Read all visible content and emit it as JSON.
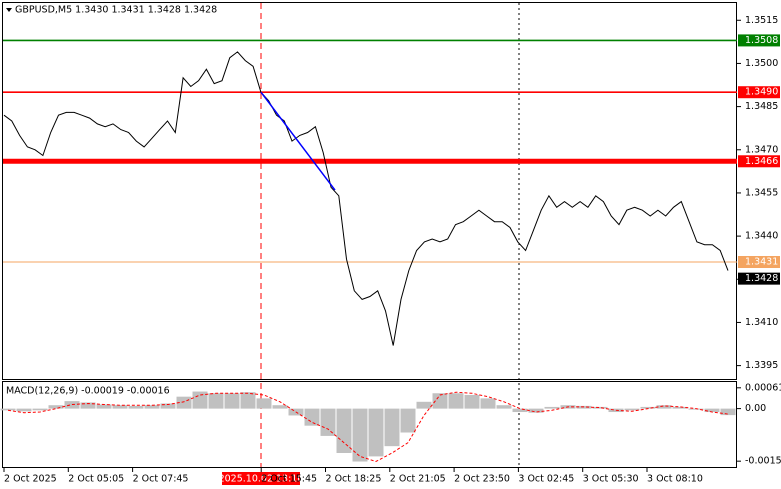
{
  "chart_data": [
    {
      "type": "line",
      "title": "GBPUSD,M5  1.3430 1.3431 1.3428 1.3428",
      "color": "#000000",
      "values": [
        1.3482,
        1.348,
        1.3475,
        1.3471,
        1.347,
        1.3468,
        1.3476,
        1.3482,
        1.3483,
        1.3483,
        1.3482,
        1.3481,
        1.3479,
        1.3478,
        1.3479,
        1.3477,
        1.3476,
        1.3473,
        1.3471,
        1.3474,
        1.3477,
        1.348,
        1.3476,
        1.3495,
        1.3492,
        1.3494,
        1.3498,
        1.3493,
        1.3494,
        1.3502,
        1.3504,
        1.3501,
        1.3499,
        1.349,
        1.3487,
        1.3482,
        1.348,
        1.3473,
        1.3475,
        1.3476,
        1.3478,
        1.3469,
        1.3457,
        1.3454,
        1.3432,
        1.3421,
        1.3418,
        1.3419,
        1.3421,
        1.3414,
        1.3402,
        1.3418,
        1.3428,
        1.3435,
        1.3438,
        1.3439,
        1.3438,
        1.3439,
        1.3444,
        1.3445,
        1.3447,
        1.3449,
        1.3447,
        1.3445,
        1.3445,
        1.3443,
        1.3438,
        1.3435,
        1.3442,
        1.3449,
        1.3454,
        1.345,
        1.3452,
        1.345,
        1.3452,
        1.345,
        1.3454,
        1.3452,
        1.3447,
        1.3444,
        1.3449,
        1.345,
        1.3449,
        1.3447,
        1.3449,
        1.3447,
        1.345,
        1.3452,
        1.3445,
        1.3438,
        1.3437,
        1.3437,
        1.3435,
        1.3428
      ],
      "ylim": [
        1.339,
        1.3521
      ],
      "yticks": [
        1.3515,
        {
          "value": 1.35,
          "label": "1.3500"
        },
        1.3485,
        {
          "value": 1.347,
          "label": "1.3470"
        },
        1.3455,
        {
          "value": 1.344,
          "label": "1.3440"
        },
        1.3425,
        {
          "value": 1.341,
          "label": "1.3410"
        },
        1.3395
      ],
      "levels": [
        {
          "value": 1.3508,
          "label": "1.3508",
          "color": "#008000"
        },
        {
          "value": 1.349,
          "label": "1.3490",
          "color": "#ff0000"
        },
        {
          "value": 1.3466,
          "label": "1.3466",
          "color": "#ff0000"
        },
        {
          "value": 1.3431,
          "label": "1.3431",
          "color": "#f4a460"
        }
      ],
      "last_price": {
        "value": 1.3428,
        "label": "1.3428"
      },
      "trendline": {
        "values": [
          1.349,
          1.3456
        ],
        "color": "#0000ff"
      },
      "crosshair_label": "2025.10.02 13:10"
    },
    {
      "type": "macd",
      "title": "MACD(12,26,9) -0.00019 -0.00016",
      "histogram": {
        "color": "#c0c0c0",
        "values": [
          -5e-05,
          -8e-05,
          -5e-05,
          0.0001,
          0.00022,
          0.00018,
          0.00012,
          0.0001,
          8e-05,
          0.0001,
          0.00015,
          0.00035,
          0.0005,
          0.00045,
          0.00045,
          0.00048,
          0.0003,
          0.0001,
          -0.0002,
          -0.0005,
          -0.0008,
          -0.0013,
          -0.00155,
          -0.0014,
          -0.0011,
          -0.0007,
          0.0002,
          0.00045,
          0.00045,
          0.0004,
          0.0003,
          0.0001,
          -0.0001,
          -0.00012,
          5e-05,
          0.0001,
          8e-05,
          5e-05,
          -0.0001,
          -5e-05,
          5e-05,
          0.0001,
          5e-05,
          -3e-05,
          -0.0001,
          -0.00019
        ]
      },
      "signal": {
        "color": "#ff0000",
        "values": [
          -5e-05,
          -0.00012,
          -0.0001,
          0,
          0.00012,
          0.00015,
          0.00012,
          0.0001,
          0.0001,
          0.0001,
          0.00012,
          0.0002,
          0.0004,
          0.00045,
          0.00045,
          0.00045,
          0.0004,
          0.0002,
          -0.0001,
          -0.0004,
          -0.0006,
          -0.001,
          -0.0014,
          -0.00155,
          -0.0013,
          -0.001,
          -0.0002,
          0.0004,
          0.00048,
          0.00045,
          0.00035,
          0.0002,
          0,
          -0.0001,
          -5e-05,
          5e-05,
          5e-05,
          3e-05,
          -5e-05,
          -8e-05,
          0,
          8e-05,
          5e-05,
          0,
          -0.0001,
          -0.00016
        ]
      },
      "ylim": [
        -0.00174,
        0.00078
      ],
      "yticks": [
        0.00061,
        {
          "value": 0,
          "label": "0.00"
        },
        -0.00154
      ],
      "xtick_labels": [
        "2 Oct 2025",
        "2 Oct 05:05",
        "2 Oct 07:45",
        null,
        "2 Oct 15:45",
        "2 Oct 18:25",
        "2 Oct 21:05",
        "2 Oct 23:50",
        "3 Oct 02:45",
        "3 Oct 05:30",
        "3 Oct 08:10"
      ]
    }
  ]
}
